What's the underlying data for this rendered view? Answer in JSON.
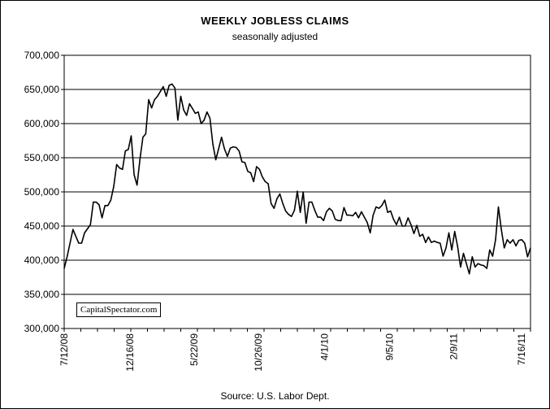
{
  "chart_data": {
    "type": "line",
    "title": "WEEKLY JOBLESS CLAIMS",
    "subtitle": "seasonally adjusted",
    "source": "Source: U.S. Labor Dept.",
    "watermark": "CapitalSpectator.com",
    "ylim": [
      300000,
      700000
    ],
    "y_ticks": [
      "300,000",
      "350,000",
      "400,000",
      "450,000",
      "500,000",
      "550,000",
      "600,000",
      "650,000",
      "700,000"
    ],
    "y_tick_values": [
      300000,
      350000,
      400000,
      450000,
      500000,
      550000,
      600000,
      650000,
      700000
    ],
    "x_ticks": [
      "7/12/08",
      "12/16/08",
      "5/22/09",
      "10/26/09",
      "4/1/10",
      "9/5/10",
      "2/9/11",
      "7/16/11"
    ],
    "x_tick_weeks": [
      0,
      22.6,
      44.6,
      66.6,
      89.4,
      111.6,
      133.6,
      157
    ],
    "grid": "horizontal",
    "series": [
      {
        "color": "#000000",
        "x_start": "7/12/08",
        "interval": "weekly",
        "values": [
          388000,
          405000,
          425000,
          445000,
          435000,
          425000,
          425000,
          440000,
          446000,
          452000,
          485000,
          485000,
          481000,
          462000,
          480000,
          480000,
          488000,
          508000,
          540000,
          535000,
          533000,
          560000,
          562000,
          582000,
          525000,
          510000,
          548000,
          580000,
          585000,
          635000,
          623000,
          635000,
          640000,
          647000,
          654000,
          640000,
          656000,
          658000,
          652000,
          605000,
          640000,
          620000,
          612000,
          629000,
          622000,
          615000,
          617000,
          600000,
          605000,
          617000,
          608000,
          570000,
          547000,
          563000,
          580000,
          563000,
          552000,
          564000,
          566000,
          565000,
          560000,
          544000,
          543000,
          530000,
          528000,
          515000,
          537000,
          533000,
          522000,
          515000,
          512000,
          483000,
          476000,
          490000,
          497000,
          483000,
          472000,
          467000,
          464000,
          473000,
          501000,
          470000,
          500000,
          454000,
          485000,
          485000,
          473000,
          463000,
          463000,
          458000,
          471000,
          476000,
          472000,
          460000,
          458000,
          458000,
          477000,
          466000,
          466000,
          465000,
          470000,
          462000,
          471000,
          463000,
          455000,
          440000,
          466000,
          478000,
          476000,
          480000,
          488000,
          470000,
          472000,
          460000,
          452000,
          463000,
          450000,
          450000,
          462000,
          452000,
          439000,
          451000,
          435000,
          438000,
          426000,
          434000,
          426000,
          428000,
          426000,
          425000,
          406000,
          418000,
          440000,
          415000,
          442000,
          420000,
          390000,
          410000,
          395000,
          380000,
          405000,
          390000,
          395000,
          393000,
          392000,
          388000,
          415000,
          406000,
          430000,
          478000,
          445000,
          418000,
          430000,
          425000,
          430000,
          421000,
          429000,
          430000,
          425000,
          405000,
          418000
        ]
      }
    ]
  }
}
